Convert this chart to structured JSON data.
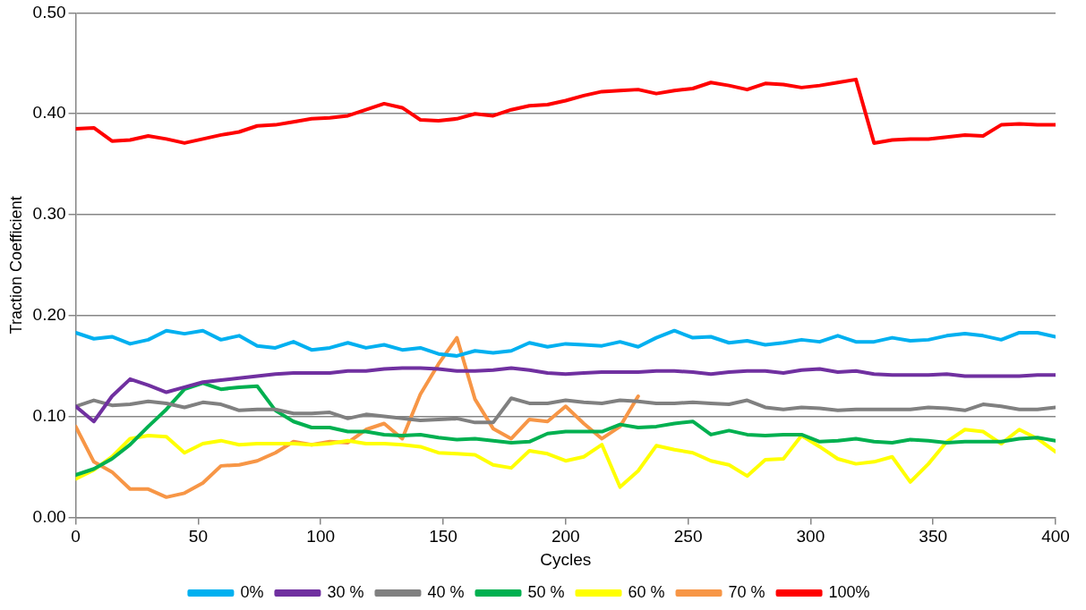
{
  "chart_data": {
    "type": "line",
    "xlabel": "Cycles",
    "ylabel": "Traction Coefficient",
    "x": [
      0,
      7.4,
      14.8,
      22.2,
      29.6,
      37,
      44.4,
      51.9,
      59.3,
      66.7,
      74.1,
      81.5,
      88.9,
      96.3,
      103.7,
      111.1,
      118.5,
      125.9,
      133.3,
      140.7,
      148.1,
      155.6,
      163,
      170.4,
      177.8,
      185.2,
      192.6,
      200,
      207.4,
      214.8,
      222.2,
      229.6,
      237,
      244.4,
      251.9,
      259.3,
      266.7,
      274.1,
      281.5,
      288.9,
      296.3,
      303.7,
      311.1,
      318.5,
      325.9,
      333.3,
      340.7,
      348.1,
      355.6,
      363,
      370.4,
      377.8,
      385.2,
      392.6,
      400
    ],
    "xlim": [
      0,
      400
    ],
    "xticks": [
      0,
      50,
      100,
      150,
      200,
      250,
      300,
      350,
      400
    ],
    "ylim": [
      0,
      0.5
    ],
    "yticks": [
      {
        "value": 0,
        "label": "0.00"
      },
      {
        "value": 0.1,
        "label": "0.10"
      },
      {
        "value": 0.2,
        "label": "0.20"
      },
      {
        "value": 0.3,
        "label": "0.30"
      },
      {
        "value": 0.4,
        "label": "0.40"
      },
      {
        "value": 0.5,
        "label": "0.50"
      }
    ],
    "grid": "y",
    "legend": "bottom",
    "marker": "none",
    "line_style": "solid",
    "series": [
      {
        "name": "0%",
        "color": "#00b0f0",
        "values": [
          0.183,
          0.177,
          0.179,
          0.172,
          0.176,
          0.185,
          0.182,
          0.185,
          0.176,
          0.18,
          0.17,
          0.168,
          0.174,
          0.166,
          0.168,
          0.173,
          0.168,
          0.171,
          0.166,
          0.168,
          0.162,
          0.16,
          0.165,
          0.163,
          0.165,
          0.173,
          0.169,
          0.172,
          0.171,
          0.17,
          0.174,
          0.169,
          0.178,
          0.185,
          0.178,
          0.179,
          0.173,
          0.175,
          0.171,
          0.173,
          0.176,
          0.174,
          0.18,
          0.174,
          0.174,
          0.178,
          0.175,
          0.176,
          0.18,
          0.182,
          0.18,
          0.176,
          0.183,
          0.183,
          0.179
        ]
      },
      {
        "name": "30 %",
        "color": "#7030a0",
        "values": [
          0.11,
          0.095,
          0.12,
          0.137,
          0.131,
          0.124,
          0.129,
          0.134,
          0.136,
          0.138,
          0.14,
          0.142,
          0.143,
          0.143,
          0.143,
          0.145,
          0.145,
          0.147,
          0.148,
          0.148,
          0.147,
          0.145,
          0.145,
          0.146,
          0.148,
          0.146,
          0.143,
          0.142,
          0.143,
          0.144,
          0.144,
          0.144,
          0.145,
          0.145,
          0.144,
          0.142,
          0.144,
          0.145,
          0.145,
          0.143,
          0.146,
          0.147,
          0.144,
          0.145,
          0.142,
          0.141,
          0.141,
          0.141,
          0.142,
          0.14,
          0.14,
          0.14,
          0.14,
          0.141,
          0.141
        ]
      },
      {
        "name": "40 %",
        "color": "#808080",
        "values": [
          0.11,
          0.116,
          0.111,
          0.112,
          0.115,
          0.113,
          0.109,
          0.114,
          0.112,
          0.106,
          0.107,
          0.107,
          0.103,
          0.103,
          0.104,
          0.098,
          0.102,
          0.1,
          0.098,
          0.096,
          0.097,
          0.098,
          0.094,
          0.094,
          0.118,
          0.113,
          0.113,
          0.116,
          0.114,
          0.113,
          0.116,
          0.115,
          0.113,
          0.113,
          0.114,
          0.113,
          0.112,
          0.116,
          0.109,
          0.107,
          0.109,
          0.108,
          0.106,
          0.107,
          0.107,
          0.107,
          0.107,
          0.109,
          0.108,
          0.106,
          0.112,
          0.11,
          0.107,
          0.107,
          0.109
        ]
      },
      {
        "name": "50 %",
        "color": "#00b050",
        "values": [
          0.042,
          0.048,
          0.058,
          0.072,
          0.09,
          0.107,
          0.127,
          0.133,
          0.127,
          0.129,
          0.13,
          0.106,
          0.095,
          0.089,
          0.089,
          0.085,
          0.085,
          0.082,
          0.081,
          0.082,
          0.079,
          0.077,
          0.078,
          0.076,
          0.074,
          0.075,
          0.083,
          0.085,
          0.085,
          0.085,
          0.092,
          0.089,
          0.09,
          0.093,
          0.095,
          0.082,
          0.086,
          0.082,
          0.081,
          0.082,
          0.082,
          0.075,
          0.076,
          0.078,
          0.075,
          0.074,
          0.077,
          0.076,
          0.074,
          0.075,
          0.075,
          0.075,
          0.078,
          0.079,
          0.076
        ]
      },
      {
        "name": "60 %",
        "color": "#ffff00",
        "values": [
          0.038,
          0.047,
          0.06,
          0.078,
          0.081,
          0.08,
          0.064,
          0.073,
          0.076,
          0.072,
          0.073,
          0.073,
          0.073,
          0.072,
          0.073,
          0.076,
          0.073,
          0.073,
          0.072,
          0.07,
          0.064,
          0.063,
          0.062,
          0.052,
          0.049,
          0.066,
          0.063,
          0.056,
          0.06,
          0.072,
          0.03,
          0.046,
          0.071,
          0.067,
          0.064,
          0.056,
          0.052,
          0.041,
          0.057,
          0.058,
          0.081,
          0.07,
          0.058,
          0.053,
          0.055,
          0.06,
          0.035,
          0.053,
          0.075,
          0.087,
          0.085,
          0.073,
          0.087,
          0.078,
          0.065
        ]
      },
      {
        "name": "70 %",
        "color": "#f79646",
        "values": [
          0.09,
          0.055,
          0.045,
          0.028,
          0.028,
          0.02,
          0.024,
          0.034,
          0.051,
          0.052,
          0.056,
          0.064,
          0.075,
          0.072,
          0.075,
          0.074,
          0.087,
          0.093,
          0.078,
          0.122,
          0.152,
          0.178,
          0.117,
          0.088,
          0.078,
          0.097,
          0.095,
          0.11,
          0.093,
          0.078,
          0.09,
          0.12,
          null,
          null,
          null,
          null,
          null,
          null,
          null,
          null,
          null,
          null,
          null,
          null,
          null,
          null,
          null,
          null,
          null,
          null,
          null,
          null,
          null,
          null,
          null
        ]
      },
      {
        "name": "100%",
        "color": "#ff0000",
        "values": [
          0.385,
          0.386,
          0.373,
          0.374,
          0.378,
          0.375,
          0.371,
          0.375,
          0.379,
          0.382,
          0.388,
          0.389,
          0.392,
          0.395,
          0.396,
          0.398,
          0.404,
          0.41,
          0.406,
          0.394,
          0.393,
          0.395,
          0.4,
          0.398,
          0.404,
          0.408,
          0.409,
          0.413,
          0.418,
          0.422,
          0.423,
          0.424,
          0.42,
          0.423,
          0.425,
          0.431,
          0.428,
          0.424,
          0.43,
          0.429,
          0.426,
          0.428,
          0.431,
          0.434,
          0.371,
          0.374,
          0.375,
          0.375,
          0.377,
          0.379,
          0.378,
          0.389,
          0.39,
          0.389,
          0.389
        ]
      }
    ]
  }
}
